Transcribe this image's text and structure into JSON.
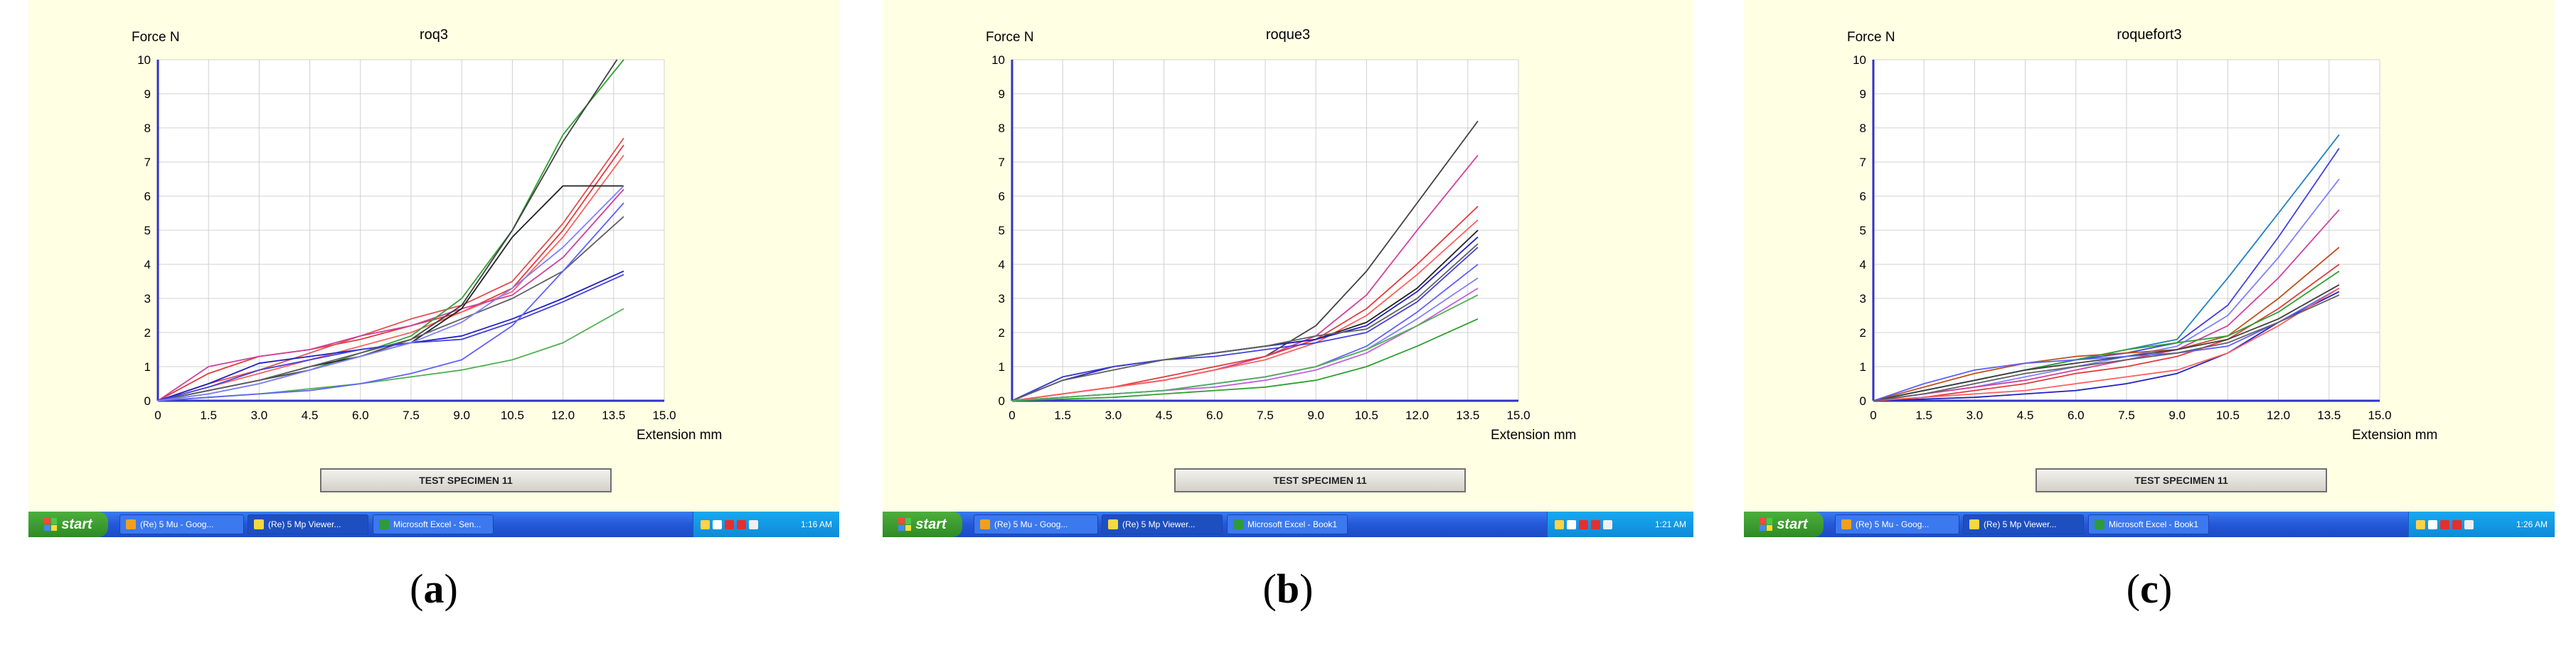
{
  "panels": [
    {
      "id": "a",
      "caption_open": "(",
      "caption_letter": "a",
      "caption_close": ")",
      "title": "roq3",
      "button_label": "TEST SPECIMEN 11",
      "taskbar": {
        "start_label": "start",
        "items": [
          "(Re) 5 Mu - Goog...",
          "(Re) 5 Mp Viewer...",
          "Microsoft Excel - Sen..."
        ],
        "clock": "1:16 AM"
      }
    },
    {
      "id": "b",
      "caption_open": "(",
      "caption_letter": "b",
      "caption_close": ")",
      "title": "roque3",
      "button_label": "TEST SPECIMEN 11",
      "taskbar": {
        "start_label": "start",
        "items": [
          "(Re) 5 Mu - Goog...",
          "(Re) 5 Mp Viewer...",
          "Microsoft Excel - Book1"
        ],
        "clock": "1:21 AM"
      }
    },
    {
      "id": "c",
      "caption_open": "(",
      "caption_letter": "c",
      "caption_close": ")",
      "title": "roquefort3",
      "button_label": "TEST SPECIMEN 11",
      "taskbar": {
        "start_label": "start",
        "items": [
          "(Re) 5 Mu - Goog...",
          "(Re) 5 Mp Viewer...",
          "Microsoft Excel - Book1"
        ],
        "clock": "1:26 AM"
      }
    }
  ],
  "chart_data": [
    {
      "type": "line",
      "title": "roq3",
      "xlabel": "Extension mm",
      "ylabel": "Force N",
      "xlim": [
        0,
        15
      ],
      "ylim": [
        0,
        10
      ],
      "x_ticks": [
        "0",
        "1.5",
        "3.0",
        "4.5",
        "6.0",
        "7.5",
        "9.0",
        "10.5",
        "12.0",
        "13.5",
        "15.0"
      ],
      "y_ticks": [
        "0",
        "1",
        "2",
        "3",
        "4",
        "5",
        "6",
        "7",
        "8",
        "9",
        "10"
      ],
      "grid": true,
      "series": [
        {
          "color": "#e03c3c",
          "x": [
            0,
            1.5,
            3,
            4.5,
            6,
            7.5,
            9,
            10.5,
            12,
            13.8
          ],
          "y": [
            0,
            0.8,
            1.3,
            1.5,
            1.8,
            2.2,
            2.6,
            3.3,
            5.0,
            7.5
          ]
        },
        {
          "color": "#e05050",
          "x": [
            0,
            1.5,
            3,
            4.5,
            6,
            7.5,
            9,
            10.5,
            12,
            13.8
          ],
          "y": [
            0,
            0.5,
            0.9,
            1.4,
            1.9,
            2.4,
            2.8,
            3.5,
            5.2,
            7.7
          ]
        },
        {
          "color": "#ff6060",
          "x": [
            0,
            1.5,
            3,
            4.5,
            6,
            7.5,
            9,
            10.5,
            12,
            13.8
          ],
          "y": [
            0,
            0.4,
            0.8,
            1.2,
            1.6,
            2.0,
            2.6,
            3.2,
            4.8,
            7.2
          ]
        },
        {
          "color": "#d040a0",
          "x": [
            0,
            1.5,
            3,
            4.5,
            6,
            7.5,
            9,
            10.5,
            12,
            13.8
          ],
          "y": [
            0,
            1.0,
            1.3,
            1.5,
            1.9,
            2.2,
            2.7,
            3.1,
            4.2,
            6.2
          ]
        },
        {
          "color": "#30a030",
          "x": [
            0,
            1.5,
            3,
            4.5,
            6,
            7.5,
            9,
            10.5,
            12,
            13.8
          ],
          "y": [
            0,
            0.2,
            0.5,
            0.9,
            1.4,
            1.9,
            3.0,
            5.0,
            7.8,
            10.0
          ]
        },
        {
          "color": "#50b050",
          "x": [
            0,
            1.5,
            3,
            4.5,
            6,
            7.5,
            9,
            10.5,
            12,
            13.8
          ],
          "y": [
            0,
            0.1,
            0.2,
            0.35,
            0.5,
            0.7,
            0.9,
            1.2,
            1.7,
            2.7
          ]
        },
        {
          "color": "#202020",
          "x": [
            0,
            1.5,
            3,
            4.5,
            6,
            7.5,
            9,
            10.5,
            12,
            13.8
          ],
          "y": [
            0,
            0.3,
            0.6,
            1.0,
            1.3,
            1.7,
            2.7,
            4.8,
            6.3,
            6.3
          ]
        },
        {
          "color": "#404040",
          "x": [
            0,
            1.5,
            3,
            4.5,
            6,
            7.5,
            9,
            10.5,
            12,
            13.6
          ],
          "y": [
            0,
            0.3,
            0.6,
            0.9,
            1.3,
            1.8,
            2.8,
            5.0,
            7.6,
            10.0
          ]
        },
        {
          "color": "#606060",
          "x": [
            0,
            1.5,
            3,
            4.5,
            6,
            7.5,
            9,
            10.5,
            12,
            13.8
          ],
          "y": [
            0,
            0.3,
            0.6,
            1.0,
            1.4,
            1.8,
            2.4,
            3.0,
            3.8,
            5.4
          ]
        },
        {
          "color": "#2020c0",
          "x": [
            0,
            1.5,
            3,
            4.5,
            6,
            7.5,
            9,
            10.5,
            12,
            13.8
          ],
          "y": [
            0,
            0.5,
            1.1,
            1.3,
            1.5,
            1.7,
            1.9,
            2.4,
            3.0,
            3.8
          ]
        },
        {
          "color": "#4040e0",
          "x": [
            0,
            1.5,
            3,
            4.5,
            6,
            7.5,
            9,
            10.5,
            12,
            13.8
          ],
          "y": [
            0,
            0.4,
            0.9,
            1.2,
            1.5,
            1.7,
            1.8,
            2.3,
            2.9,
            3.7
          ]
        },
        {
          "color": "#6060ff",
          "x": [
            0,
            1.5,
            3,
            4.5,
            6,
            7.5,
            9,
            10.5,
            12,
            13.8
          ],
          "y": [
            0,
            0.1,
            0.2,
            0.3,
            0.5,
            0.8,
            1.2,
            2.2,
            3.8,
            5.8
          ]
        },
        {
          "color": "#8080ff",
          "x": [
            0,
            1.5,
            3,
            4.5,
            6,
            7.5,
            9,
            10.5,
            12,
            13.8
          ],
          "y": [
            0,
            0.2,
            0.5,
            0.9,
            1.3,
            1.7,
            2.3,
            3.3,
            4.5,
            6.3
          ]
        }
      ]
    },
    {
      "type": "line",
      "title": "roque3",
      "xlabel": "Extension mm",
      "ylabel": "Force N",
      "xlim": [
        0,
        15
      ],
      "ylim": [
        0,
        10
      ],
      "x_ticks": [
        "0",
        "1.5",
        "3.0",
        "4.5",
        "6.0",
        "7.5",
        "9.0",
        "10.5",
        "12.0",
        "13.5",
        "15.0"
      ],
      "y_ticks": [
        "0",
        "1",
        "2",
        "3",
        "4",
        "5",
        "6",
        "7",
        "8",
        "9",
        "10"
      ],
      "grid": true,
      "series": [
        {
          "color": "#404040",
          "x": [
            0,
            1.5,
            3,
            4.5,
            6,
            7.5,
            9,
            10.5,
            12,
            13.8
          ],
          "y": [
            0,
            0.2,
            0.4,
            0.6,
            0.9,
            1.3,
            2.2,
            3.8,
            5.8,
            8.2
          ]
        },
        {
          "color": "#d040a0",
          "x": [
            0,
            1.5,
            3,
            4.5,
            6,
            7.5,
            9,
            10.5,
            12,
            13.8
          ],
          "y": [
            0,
            0.2,
            0.4,
            0.6,
            0.9,
            1.3,
            1.9,
            3.1,
            5.0,
            7.2
          ]
        },
        {
          "color": "#e03c3c",
          "x": [
            0,
            1.5,
            3,
            4.5,
            6,
            7.5,
            9,
            10.5,
            12,
            13.8
          ],
          "y": [
            0,
            0.2,
            0.4,
            0.7,
            1.0,
            1.3,
            1.8,
            2.7,
            4.0,
            5.7
          ]
        },
        {
          "color": "#ff6060",
          "x": [
            0,
            1.5,
            3,
            4.5,
            6,
            7.5,
            9,
            10.5,
            12,
            13.8
          ],
          "y": [
            0,
            0.2,
            0.4,
            0.6,
            0.9,
            1.2,
            1.7,
            2.5,
            3.7,
            5.3
          ]
        },
        {
          "color": "#202020",
          "x": [
            0,
            1.5,
            3,
            4.5,
            6,
            7.5,
            9,
            10.5,
            12,
            13.8
          ],
          "y": [
            0,
            0.7,
            1.0,
            1.2,
            1.4,
            1.6,
            1.8,
            2.3,
            3.3,
            5.0
          ]
        },
        {
          "color": "#2020c0",
          "x": [
            0,
            1.5,
            3,
            4.5,
            6,
            7.5,
            9,
            10.5,
            12,
            13.8
          ],
          "y": [
            0,
            0.6,
            1.0,
            1.2,
            1.4,
            1.6,
            1.8,
            2.2,
            3.2,
            4.8
          ]
        },
        {
          "color": "#4040e0",
          "x": [
            0,
            1.5,
            3,
            4.5,
            6,
            7.5,
            9,
            10.5,
            12,
            13.8
          ],
          "y": [
            0,
            0.7,
            1.0,
            1.2,
            1.3,
            1.5,
            1.7,
            2.0,
            2.9,
            4.5
          ]
        },
        {
          "color": "#606060",
          "x": [
            0,
            1.5,
            3,
            4.5,
            6,
            7.5,
            9,
            10.5,
            12,
            13.8
          ],
          "y": [
            0,
            0.6,
            0.9,
            1.2,
            1.4,
            1.6,
            1.9,
            2.1,
            3.0,
            4.6
          ]
        },
        {
          "color": "#6060ff",
          "x": [
            0,
            1.5,
            3,
            4.5,
            6,
            7.5,
            9,
            10.5,
            12,
            13.8
          ],
          "y": [
            0,
            0.1,
            0.2,
            0.3,
            0.5,
            0.7,
            1.0,
            1.6,
            2.6,
            4.0
          ]
        },
        {
          "color": "#8080ff",
          "x": [
            0,
            1.5,
            3,
            4.5,
            6,
            7.5,
            9,
            10.5,
            12,
            13.8
          ],
          "y": [
            0,
            0.1,
            0.2,
            0.3,
            0.5,
            0.7,
            1.0,
            1.5,
            2.4,
            3.6
          ]
        },
        {
          "color": "#c060e0",
          "x": [
            0,
            1.5,
            3,
            4.5,
            6,
            7.5,
            9,
            10.5,
            12,
            13.8
          ],
          "y": [
            0,
            0.1,
            0.2,
            0.3,
            0.4,
            0.6,
            0.9,
            1.4,
            2.2,
            3.3
          ]
        },
        {
          "color": "#30a030",
          "x": [
            0,
            1.5,
            3,
            4.5,
            6,
            7.5,
            9,
            10.5,
            12,
            13.8
          ],
          "y": [
            0,
            0.05,
            0.1,
            0.2,
            0.3,
            0.4,
            0.6,
            1.0,
            1.6,
            2.4
          ]
        },
        {
          "color": "#50b050",
          "x": [
            0,
            1.5,
            3,
            4.5,
            6,
            7.5,
            9,
            10.5,
            12,
            13.8
          ],
          "y": [
            0,
            0.1,
            0.2,
            0.3,
            0.5,
            0.7,
            1.0,
            1.5,
            2.2,
            3.1
          ]
        }
      ]
    },
    {
      "type": "line",
      "title": "roquefort3",
      "xlabel": "Extension mm",
      "ylabel": "Force N",
      "xlim": [
        0,
        15
      ],
      "ylim": [
        0,
        10
      ],
      "x_ticks": [
        "0",
        "1.5",
        "3.0",
        "4.5",
        "6.0",
        "7.5",
        "9.0",
        "10.5",
        "12.0",
        "13.5",
        "15.0"
      ],
      "y_ticks": [
        "0",
        "1",
        "2",
        "3",
        "4",
        "5",
        "6",
        "7",
        "8",
        "9",
        "10"
      ],
      "grid": true,
      "series": [
        {
          "color": "#2080c0",
          "x": [
            0,
            1.5,
            3,
            4.5,
            6,
            7.5,
            9,
            10.5,
            12,
            13.8
          ],
          "y": [
            0,
            0.3,
            0.6,
            0.9,
            1.2,
            1.5,
            1.8,
            3.6,
            5.5,
            7.8
          ]
        },
        {
          "color": "#4040e0",
          "x": [
            0,
            1.5,
            3,
            4.5,
            6,
            7.5,
            9,
            10.5,
            12,
            13.8
          ],
          "y": [
            0,
            0.3,
            0.6,
            0.9,
            1.2,
            1.4,
            1.7,
            2.8,
            4.8,
            7.4
          ]
        },
        {
          "color": "#8080ff",
          "x": [
            0,
            1.5,
            3,
            4.5,
            6,
            7.5,
            9,
            10.5,
            12,
            13.8
          ],
          "y": [
            0,
            0.2,
            0.4,
            0.7,
            1.0,
            1.3,
            1.6,
            2.5,
            4.2,
            6.5
          ]
        },
        {
          "color": "#d040a0",
          "x": [
            0,
            1.5,
            3,
            4.5,
            6,
            7.5,
            9,
            10.5,
            12,
            13.8
          ],
          "y": [
            0,
            0.2,
            0.4,
            0.6,
            0.9,
            1.2,
            1.5,
            2.2,
            3.6,
            5.6
          ]
        },
        {
          "color": "#c05020",
          "x": [
            0,
            1.5,
            3,
            4.5,
            6,
            7.5,
            9,
            10.5,
            12,
            13.8
          ],
          "y": [
            0,
            0.4,
            0.8,
            1.1,
            1.3,
            1.4,
            1.5,
            1.9,
            3.0,
            4.5
          ]
        },
        {
          "color": "#e03c3c",
          "x": [
            0,
            1.5,
            3,
            4.5,
            6,
            7.5,
            9,
            10.5,
            12,
            13.8
          ],
          "y": [
            0,
            0.1,
            0.3,
            0.5,
            0.8,
            1.0,
            1.3,
            1.8,
            2.7,
            4.0
          ]
        },
        {
          "color": "#30a030",
          "x": [
            0,
            1.5,
            3,
            4.5,
            6,
            7.5,
            9,
            10.5,
            12,
            13.8
          ],
          "y": [
            0,
            0.3,
            0.6,
            0.9,
            1.2,
            1.5,
            1.7,
            1.9,
            2.6,
            3.8
          ]
        },
        {
          "color": "#404040",
          "x": [
            0,
            1.5,
            3,
            4.5,
            6,
            7.5,
            9,
            10.5,
            12,
            13.8
          ],
          "y": [
            0,
            0.3,
            0.6,
            0.9,
            1.1,
            1.3,
            1.5,
            1.8,
            2.4,
            3.4
          ]
        },
        {
          "color": "#2020c0",
          "x": [
            0,
            1.5,
            3,
            4.5,
            6,
            7.5,
            9,
            10.5,
            12,
            13.8
          ],
          "y": [
            0,
            0.05,
            0.1,
            0.2,
            0.3,
            0.5,
            0.8,
            1.4,
            2.3,
            3.2
          ]
        },
        {
          "color": "#6060ff",
          "x": [
            0,
            1.5,
            3,
            4.5,
            6,
            7.5,
            9,
            10.5,
            12,
            13.8
          ],
          "y": [
            0,
            0.5,
            0.9,
            1.1,
            1.2,
            1.3,
            1.4,
            1.6,
            2.3,
            3.3
          ]
        },
        {
          "color": "#ff6060",
          "x": [
            0,
            1.5,
            3,
            4.5,
            6,
            7.5,
            9,
            10.5,
            12,
            13.8
          ],
          "y": [
            0,
            0.1,
            0.2,
            0.3,
            0.5,
            0.7,
            0.9,
            1.4,
            2.2,
            3.3
          ]
        },
        {
          "color": "#606060",
          "x": [
            0,
            1.5,
            3,
            4.5,
            6,
            7.5,
            9,
            10.5,
            12,
            13.8
          ],
          "y": [
            0,
            0.2,
            0.5,
            0.8,
            1.0,
            1.2,
            1.4,
            1.7,
            2.3,
            3.1
          ]
        }
      ]
    }
  ]
}
